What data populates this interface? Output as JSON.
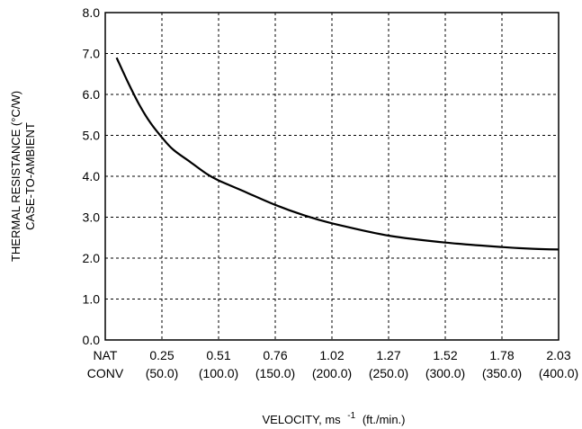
{
  "chart_data": {
    "type": "line",
    "title": "",
    "ylabel_line1": "THERMAL RESISTANCE (°C/W)",
    "ylabel_line2": "CASE-TO-AMBIENT",
    "xlabel": {
      "main": "VELOCITY, ms",
      "exponent": "-1",
      "unit": "(ft./min.)"
    },
    "ylim": [
      0,
      8
    ],
    "y_ticks": [
      "0.0",
      "1.0",
      "2.0",
      "3.0",
      "4.0",
      "5.0",
      "6.0",
      "7.0",
      "8.0"
    ],
    "x_tick_labels": [
      {
        "line1": "NAT",
        "line2": "CONV"
      },
      {
        "line1": "0.25",
        "line2": "(50.0)"
      },
      {
        "line1": "0.51",
        "line2": "(100.0)"
      },
      {
        "line1": "0.76",
        "line2": "(150.0)"
      },
      {
        "line1": "1.02",
        "line2": "(200.0)"
      },
      {
        "line1": "1.27",
        "line2": "(250.0)"
      },
      {
        "line1": "1.52",
        "line2": "(300.0)"
      },
      {
        "line1": "1.78",
        "line2": "(350.0)"
      },
      {
        "line1": "2.03",
        "line2": "(400.0)"
      }
    ],
    "x_range_ftmin": [
      0,
      400
    ],
    "grid": true,
    "series": [
      {
        "x": [
          10,
          20,
          30,
          40,
          50,
          60,
          75,
          90,
          100,
          125,
          150,
          175,
          200,
          250,
          300,
          350,
          375,
          400
        ],
        "y": [
          6.9,
          6.3,
          5.75,
          5.3,
          4.95,
          4.65,
          4.35,
          4.05,
          3.9,
          3.6,
          3.3,
          3.05,
          2.85,
          2.55,
          2.38,
          2.27,
          2.23,
          2.21
        ]
      }
    ],
    "colors": {
      "line": "#000000",
      "grid": "#000000",
      "background": "#ffffff"
    }
  }
}
